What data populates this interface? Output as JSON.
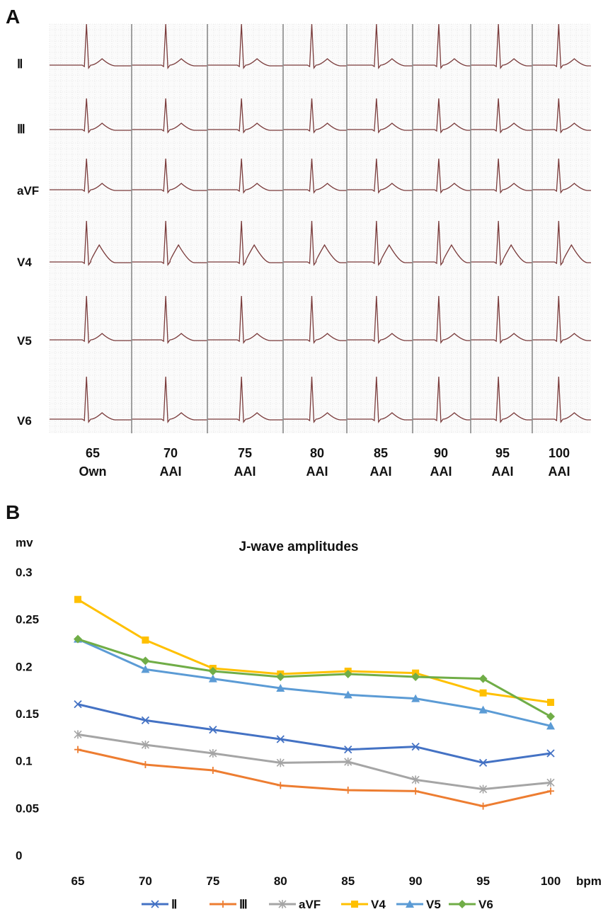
{
  "panel_a": {
    "letter": "A",
    "leads": [
      "Ⅱ",
      "Ⅲ",
      "aVF",
      "V4",
      "V5",
      "V6"
    ],
    "columns": [
      {
        "rate": "65",
        "mode": "Own"
      },
      {
        "rate": "70",
        "mode": "AAI"
      },
      {
        "rate": "75",
        "mode": "AAI"
      },
      {
        "rate": "80",
        "mode": "AAI"
      },
      {
        "rate": "85",
        "mode": "AAI"
      },
      {
        "rate": "90",
        "mode": "AAI"
      },
      {
        "rate": "95",
        "mode": "AAI"
      },
      {
        "rate": "100",
        "mode": "AAI"
      }
    ],
    "trace_color": "#7a3b3b",
    "grid_color": "#d9d9d9"
  },
  "panel_b": {
    "letter": "B"
  },
  "chart_data": {
    "type": "line",
    "title": "J-wave amplitudes",
    "ylabel": "mv",
    "xlabel": "bpm",
    "categories": [
      "65",
      "70",
      "75",
      "80",
      "85",
      "90",
      "95",
      "100"
    ],
    "ylim": [
      0,
      0.3
    ],
    "yticks": [
      0,
      0.05,
      0.1,
      0.15,
      0.2,
      0.25,
      0.3
    ],
    "ytick_labels": [
      "0",
      "0.05",
      "0.1",
      "0.15",
      "0.2",
      "0.25",
      "0.3"
    ],
    "grid": false,
    "legend_position": "bottom",
    "series": [
      {
        "name": "Ⅱ",
        "color": "#4472c4",
        "marker": "x",
        "values": [
          0.16,
          0.143,
          0.133,
          0.123,
          0.112,
          0.115,
          0.098,
          0.108
        ]
      },
      {
        "name": "Ⅲ",
        "color": "#ed7d31",
        "marker": "plus",
        "values": [
          0.112,
          0.096,
          0.09,
          0.074,
          0.069,
          0.068,
          0.052,
          0.068
        ]
      },
      {
        "name": "aVF",
        "color": "#a5a5a5",
        "marker": "star",
        "values": [
          0.128,
          0.117,
          0.108,
          0.098,
          0.099,
          0.08,
          0.07,
          0.077
        ]
      },
      {
        "name": "V4",
        "color": "#ffc000",
        "marker": "square",
        "values": [
          0.271,
          0.228,
          0.198,
          0.192,
          0.195,
          0.193,
          0.172,
          0.162
        ]
      },
      {
        "name": "V5",
        "color": "#5b9bd5",
        "marker": "triangle",
        "values": [
          0.229,
          0.197,
          0.187,
          0.177,
          0.17,
          0.166,
          0.154,
          0.137
        ]
      },
      {
        "name": "V6",
        "color": "#70ad47",
        "marker": "diamond",
        "values": [
          0.229,
          0.206,
          0.195,
          0.189,
          0.192,
          0.189,
          0.187,
          0.147
        ]
      }
    ]
  }
}
